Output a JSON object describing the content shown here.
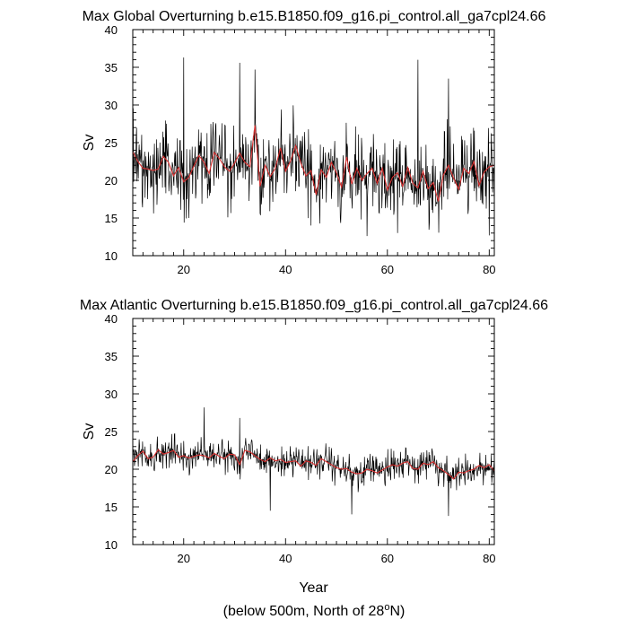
{
  "chart_data": [
    {
      "type": "line",
      "title": "Max Global Overturning b.e15.B1850.f09_g16.pi_control.all_ga7cpl24.66",
      "xlabel": "",
      "ylabel": "Sv",
      "xlim": [
        10,
        81
      ],
      "ylim": [
        10,
        40
      ],
      "xticks": [
        20,
        40,
        60,
        80
      ],
      "yticks": [
        10,
        15,
        20,
        25,
        30,
        35,
        40
      ],
      "series": [
        {
          "color": "#000000",
          "note_values": "monthly series oscillating roughly between 13 and 36",
          "keypoints_x": [
            10,
            20,
            21,
            31,
            34,
            45,
            56,
            62,
            66,
            72,
            80
          ],
          "keypoints_y": [
            24,
            36.3,
            15,
            35.6,
            34.7,
            14,
            12.6,
            13,
            36,
            33.5,
            12.7
          ]
        },
        {
          "color": "#d93030",
          "x": [
            10,
            11,
            12,
            13,
            14,
            15,
            16,
            17,
            18,
            19,
            20,
            21,
            22,
            23,
            24,
            25,
            26,
            27,
            28,
            29,
            30,
            31,
            32,
            33,
            34,
            35,
            36,
            37,
            38,
            39,
            40,
            41,
            42,
            43,
            44,
            45,
            46,
            47,
            48,
            49,
            50,
            51,
            52,
            53,
            54,
            55,
            56,
            57,
            58,
            59,
            60,
            61,
            62,
            63,
            64,
            65,
            66,
            67,
            68,
            69,
            70,
            71,
            72,
            73,
            74,
            75,
            76,
            77,
            78,
            79,
            80,
            81
          ],
          "y": [
            23.8,
            22.5,
            21.6,
            21.5,
            21.3,
            21.5,
            23.2,
            22.4,
            20.6,
            21.7,
            19.8,
            20.4,
            21.9,
            23.3,
            22.4,
            20.9,
            23.7,
            22.9,
            21.8,
            21.2,
            22.3,
            23.6,
            22.4,
            21.8,
            27.3,
            19.2,
            22.0,
            20.5,
            21.6,
            24.3,
            21.2,
            22.6,
            24.6,
            22.3,
            20.6,
            21.3,
            18.1,
            21.4,
            20.4,
            22.4,
            21.0,
            19.1,
            23.1,
            19.5,
            21.6,
            20.0,
            20.9,
            21.6,
            19.6,
            21.6,
            18.7,
            20.4,
            21.0,
            19.2,
            21.7,
            19.6,
            19.0,
            21.2,
            18.9,
            19.7,
            17.2,
            20.7,
            22.0,
            20.3,
            18.8,
            21.6,
            20.9,
            22.5,
            19.3,
            21.1,
            21.8,
            22.0
          ]
        }
      ]
    },
    {
      "type": "line",
      "title": "Max Atlantic Overturning b.e15.B1850.f09_g16.pi_control.all_ga7cpl24.66",
      "xlabel": "Year",
      "ylabel": "Sv",
      "xlim": [
        10,
        81
      ],
      "ylim": [
        10,
        40
      ],
      "xticks": [
        20,
        40,
        60,
        80
      ],
      "yticks": [
        10,
        15,
        20,
        25,
        30,
        35,
        40
      ],
      "series": [
        {
          "color": "#000000",
          "note_values": "monthly series oscillating roughly between 14 and 28",
          "keypoints_x": [
            10,
            24,
            31,
            37,
            53,
            72,
            80
          ],
          "keypoints_y": [
            21,
            28.2,
            26.8,
            14.5,
            14,
            13.8,
            20
          ]
        },
        {
          "color": "#d93030",
          "x": [
            10,
            11,
            12,
            13,
            14,
            15,
            16,
            17,
            18,
            19,
            20,
            21,
            22,
            23,
            24,
            25,
            26,
            27,
            28,
            29,
            30,
            31,
            32,
            33,
            34,
            35,
            36,
            37,
            38,
            39,
            40,
            41,
            42,
            43,
            44,
            45,
            46,
            47,
            48,
            49,
            50,
            51,
            52,
            53,
            54,
            55,
            56,
            57,
            58,
            59,
            60,
            61,
            62,
            63,
            64,
            65,
            66,
            67,
            68,
            69,
            70,
            71,
            72,
            73,
            74,
            75,
            76,
            77,
            78,
            79,
            80,
            81
          ],
          "y": [
            21.0,
            21.8,
            22.4,
            21.4,
            21.6,
            22.6,
            22.0,
            22.2,
            22.5,
            21.6,
            21.8,
            21.5,
            21.7,
            21.9,
            21.8,
            21.5,
            22.1,
            21.7,
            21.4,
            22.0,
            21.9,
            20.6,
            22.5,
            22.3,
            21.8,
            21.3,
            21.0,
            21.5,
            21.1,
            21.3,
            20.9,
            21.0,
            21.1,
            20.4,
            21.1,
            20.9,
            20.5,
            21.4,
            21.0,
            20.6,
            20.2,
            20.0,
            20.1,
            19.6,
            19.4,
            19.5,
            20.0,
            19.8,
            19.5,
            19.9,
            20.3,
            20.6,
            20.4,
            20.8,
            21.0,
            20.1,
            20.0,
            20.8,
            20.6,
            21.0,
            20.2,
            19.8,
            19.3,
            18.7,
            19.6,
            19.5,
            19.8,
            20.0,
            20.5,
            20.2,
            20.6,
            19.8
          ]
        }
      ]
    }
  ],
  "footnote": {
    "prefix": "(below 500m, North of 28",
    "sup": "o",
    "suffix": "N)"
  }
}
